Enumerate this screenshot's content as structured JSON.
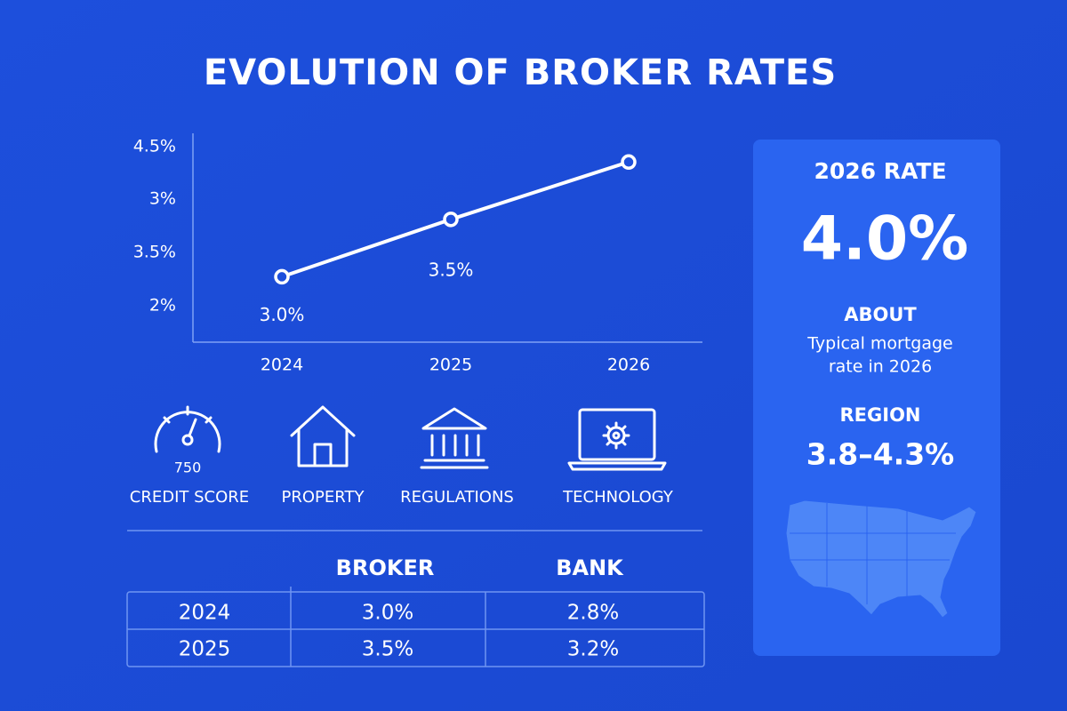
{
  "title": "EVOLUTION OF BROKER RATES",
  "chart_data": {
    "type": "line",
    "categories": [
      "2024",
      "2025",
      "2026"
    ],
    "values": [
      3.0,
      3.5,
      4.0
    ],
    "value_labels": [
      "3.0%",
      "3.5%",
      null
    ],
    "y_axis_labels": [
      "4.5%",
      "3%",
      "3.5%",
      "2%"
    ],
    "ylim": [
      2.43,
      4.25
    ],
    "color": "#ffffff"
  },
  "factors": [
    {
      "label": "CREDIT SCORE",
      "value": "750"
    },
    {
      "label": "PROPERTY"
    },
    {
      "label": "REGULATIONS"
    },
    {
      "label": "TECHNOLOGY"
    }
  ],
  "table": {
    "headers": [
      "BROKER",
      "BANK"
    ],
    "rows": [
      [
        "2024",
        "3.0%",
        "2.8%"
      ],
      [
        "2025",
        "3.5%",
        "3.2%"
      ]
    ]
  },
  "panel": {
    "title": "2026 RATE",
    "value": "4.0%",
    "about_label": "ABOUT",
    "about_text": [
      "Typical mortgage",
      "rate in 2026"
    ],
    "region_label": "REGION",
    "region_value": "3.8–4.3%"
  }
}
